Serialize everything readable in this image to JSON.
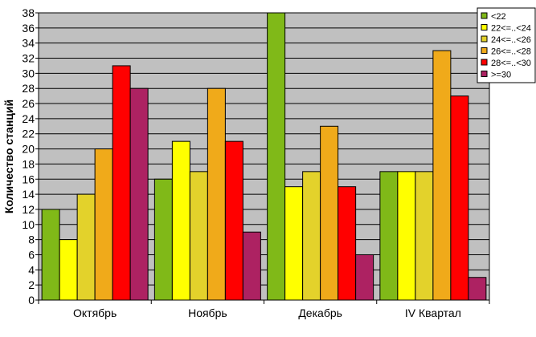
{
  "chart_data": {
    "type": "bar",
    "title": "",
    "xlabel": "",
    "ylabel": "Количество станций",
    "ylim": [
      0,
      38
    ],
    "ytick_step": 2,
    "grid": true,
    "legend_position": "top-right",
    "categories": [
      "Октябрь",
      "Ноябрь",
      "Декабрь",
      "IV Квартал"
    ],
    "series": [
      {
        "name": "<22",
        "color": "#80b918",
        "values": [
          12,
          16,
          38,
          17
        ]
      },
      {
        "name": "22<=..<24",
        "color": "#ffff00",
        "values": [
          8,
          21,
          15,
          17
        ]
      },
      {
        "name": "24<=..<26",
        "color": "#e3d22b",
        "values": [
          14,
          17,
          17,
          17
        ]
      },
      {
        "name": "26<=..<28",
        "color": "#f0aa1a",
        "values": [
          20,
          28,
          23,
          33
        ]
      },
      {
        "name": "28<=..<30",
        "color": "#ff0000",
        "values": [
          31,
          21,
          15,
          27
        ]
      },
      {
        "name": ">=30",
        "color": "#ad2262",
        "values": [
          28,
          9,
          6,
          3
        ]
      }
    ],
    "plot_background": "#c0c0c0"
  }
}
